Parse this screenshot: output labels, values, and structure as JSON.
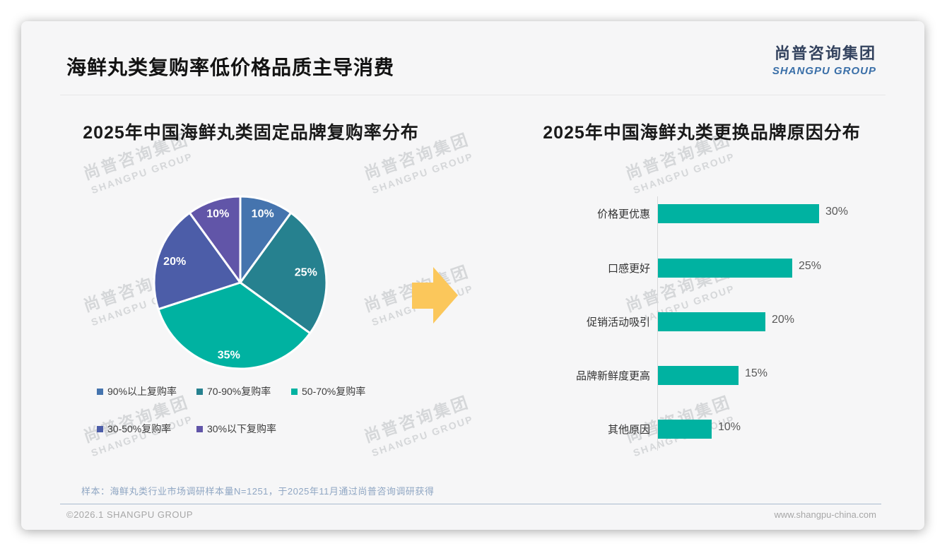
{
  "page": {
    "title": "海鲜丸类复购率低价格品质主导消费",
    "logo": {
      "cn": "尚普咨询集团",
      "en": "SHANGPU GROUP"
    },
    "watermark": {
      "cn": "尚普咨询集团",
      "en": "SHANGPU GROUP"
    },
    "note": "样本：海鲜丸类行业市场调研样本量N=1251，于2025年11月通过尚普咨询调研获得",
    "footer": {
      "left": "©2026.1 SHANGPU GROUP",
      "right": "www.shangpu-china.com"
    }
  },
  "brand": {
    "navy": "#33425e",
    "blue": "#3a6fa8"
  },
  "arrow_color": "#fbc75b",
  "chart_data": [
    {
      "type": "pie",
      "title": "2025年中国海鲜丸类固定品牌复购率分布",
      "labels": [
        "90%以上复购率",
        "70-90%复购率",
        "50-70%复购率",
        "30-50%复购率",
        "30%以下复购率"
      ],
      "values": [
        10,
        25,
        35,
        20,
        10
      ],
      "display_labels": [
        "10%",
        "25%",
        "35%",
        "20%",
        "10%"
      ],
      "unit": "%",
      "colors": [
        "#4574ae",
        "#26818f",
        "#00b2a1",
        "#4c5da8",
        "#6155a8"
      ],
      "start_angle_deg": 0,
      "direction": "clockwise",
      "slice_border_color": "#ffffff",
      "legend_position": "bottom"
    },
    {
      "type": "bar",
      "title": "2025年中国海鲜丸类更换品牌原因分布",
      "orientation": "horizontal",
      "categories": [
        "价格更优惠",
        "口感更好",
        "促销活动吸引",
        "品牌新鲜度更高",
        "其他原因"
      ],
      "values": [
        30,
        25,
        20,
        15,
        10
      ],
      "value_labels": [
        "30%",
        "25%",
        "20%",
        "15%",
        "10%"
      ],
      "unit": "%",
      "bar_color": "#00b2a1",
      "xlim": [
        0,
        33
      ],
      "grid": false,
      "value_axis_visible": false,
      "legend_position": "none"
    }
  ]
}
